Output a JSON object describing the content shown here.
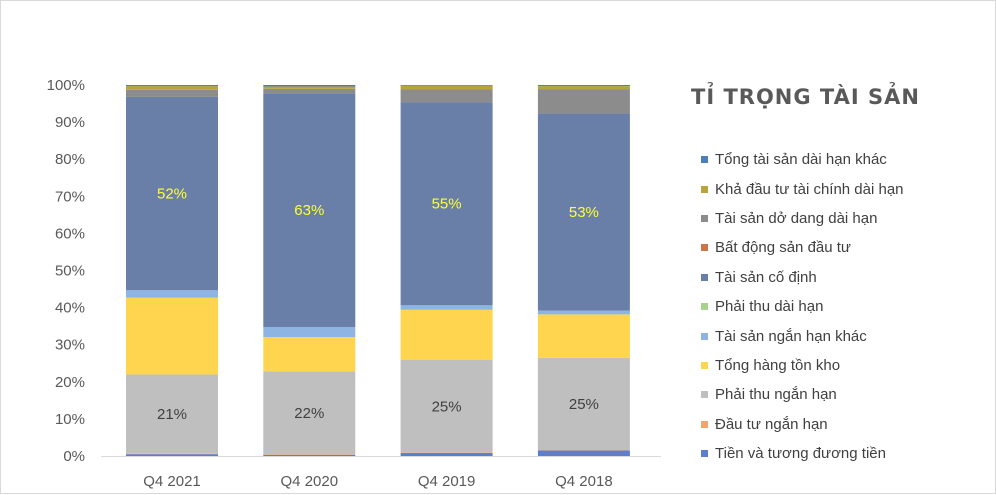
{
  "chart_data": {
    "type": "bar",
    "stacked": true,
    "percent_stacked": true,
    "title": "TỈ TRỌNG TÀI SẢN",
    "categories": [
      "Q4 2021",
      "Q4 2020",
      "Q4 2019",
      "Q4 2018"
    ],
    "ylim": [
      0,
      100
    ],
    "y_ticks": [
      "0%",
      "10%",
      "20%",
      "30%",
      "40%",
      "50%",
      "60%",
      "70%",
      "80%",
      "90%",
      "100%"
    ],
    "grid": false,
    "legend_position": "right",
    "series": [
      {
        "name": "Tiền và tương đương tiền",
        "color": "#5b7fcf",
        "values": [
          0.5,
          0.3,
          0.8,
          1.5
        ]
      },
      {
        "name": "Đầu tư ngắn hạn",
        "color": "#f4a46b",
        "values": [
          0.1,
          0.1,
          0.1,
          0.1
        ]
      },
      {
        "name": "Phải thu ngắn hạn",
        "color": "#bfbfbf",
        "values": [
          21.3,
          22.4,
          24.9,
          24.7
        ],
        "labels": [
          "21%",
          "22%",
          "25%",
          "25%"
        ],
        "label_color": "#404040"
      },
      {
        "name": "Tổng hàng tồn kho",
        "color": "#ffd54f",
        "values": [
          20.6,
          9.2,
          13.5,
          11.6
        ]
      },
      {
        "name": "Tài sản ngắn hạn khác",
        "color": "#8db4e2",
        "values": [
          2.0,
          2.7,
          1.2,
          1.0
        ]
      },
      {
        "name": "Phải thu dài hạn",
        "color": "#a9d18e",
        "values": [
          0.0,
          0.0,
          0.0,
          0.0
        ]
      },
      {
        "name": "Tài sản cố định",
        "color": "#6a7fa8",
        "values": [
          51.9,
          62.9,
          54.6,
          52.8
        ],
        "labels": [
          "52%",
          "63%",
          "55%",
          "53%"
        ],
        "label_color": "#ffff33"
      },
      {
        "name": "Bất động sản đầu tư",
        "color": "#c8754a",
        "values": [
          0.0,
          0.0,
          0.0,
          0.0
        ]
      },
      {
        "name": "Tài sản dở dang dài hạn",
        "color": "#8c8c8c",
        "values": [
          1.9,
          1.2,
          3.4,
          6.5
        ]
      },
      {
        "name": "Khả đầu tư tài chính dài hạn",
        "color": "#b8a43a",
        "values": [
          1.0,
          0.6,
          1.0,
          0.8
        ]
      },
      {
        "name": "Tổng tài sản dài hạn khác",
        "color": "#4e7fb3",
        "values": [
          0.3,
          0.4,
          0.2,
          0.3
        ]
      }
    ]
  }
}
